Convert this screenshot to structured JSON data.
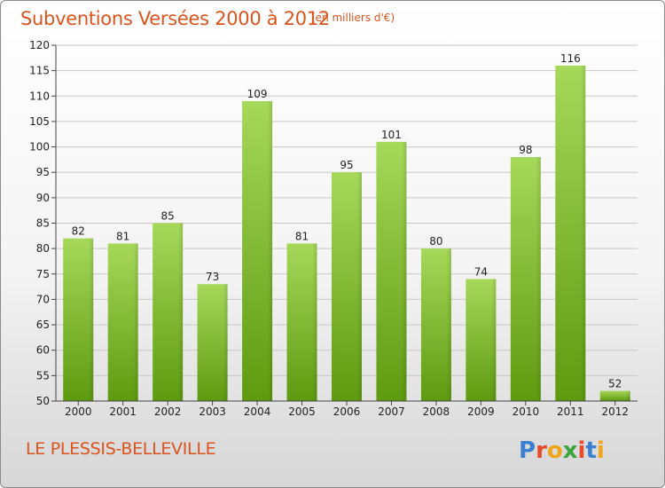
{
  "header": {
    "title": "Subventions Versées 2000 à 2012",
    "unit": "(en milliers d'€)"
  },
  "footer": {
    "place": "LE PLESSIS-BELLEVILLE",
    "logo_text": "Proxiti"
  },
  "colors": {
    "title": "#d9541e",
    "bar_light": "#a6d85a",
    "bar_dark": "#5e9a10",
    "grid": "#c8c8c8"
  },
  "chart_data": {
    "type": "bar",
    "title": "Subventions Versées 2000 à 2012",
    "categories": [
      "2000",
      "2001",
      "2002",
      "2003",
      "2004",
      "2005",
      "2006",
      "2007",
      "2008",
      "2009",
      "2010",
      "2011",
      "2012"
    ],
    "values": [
      82,
      81,
      85,
      73,
      109,
      81,
      95,
      101,
      80,
      74,
      98,
      116,
      52
    ],
    "ylim": [
      50,
      120
    ],
    "yticks": [
      50,
      55,
      60,
      65,
      70,
      75,
      80,
      85,
      90,
      95,
      100,
      105,
      110,
      115,
      120
    ],
    "grid": true,
    "data_labels": true
  }
}
